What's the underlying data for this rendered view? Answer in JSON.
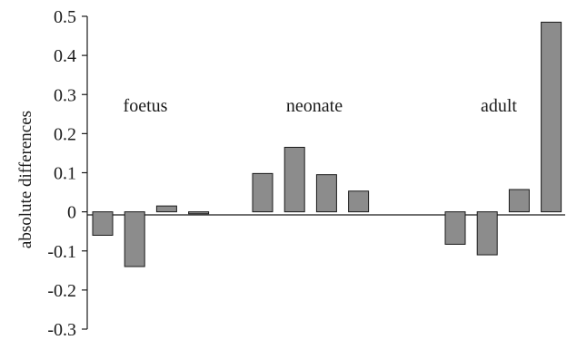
{
  "chart_data": {
    "type": "bar",
    "title": "",
    "xlabel": "",
    "ylabel": "absolute differences",
    "ylim": [
      -0.3,
      0.5
    ],
    "yticks": [
      0.5,
      0.4,
      0.3,
      0.2,
      0.1,
      0,
      -0.1,
      -0.2,
      -0.3
    ],
    "ytick_labels": [
      "0.5",
      "0.4",
      "0.3",
      "0.2",
      "0.1",
      "0",
      "-0.1",
      "-0.2",
      "-0.3"
    ],
    "grid": false,
    "legend": "none",
    "groups": [
      {
        "label": "foetus",
        "values": [
          -0.06,
          -0.14,
          0.015,
          -0.005
        ]
      },
      {
        "label": "neonate",
        "values": [
          0.098,
          0.165,
          0.095,
          0.053
        ]
      },
      {
        "label": "adult",
        "values": [
          -0.083,
          -0.11,
          0.057,
          0.485
        ]
      }
    ],
    "colors": {
      "bar": "#8c8c8c",
      "stroke": "#1a1a1a"
    }
  }
}
